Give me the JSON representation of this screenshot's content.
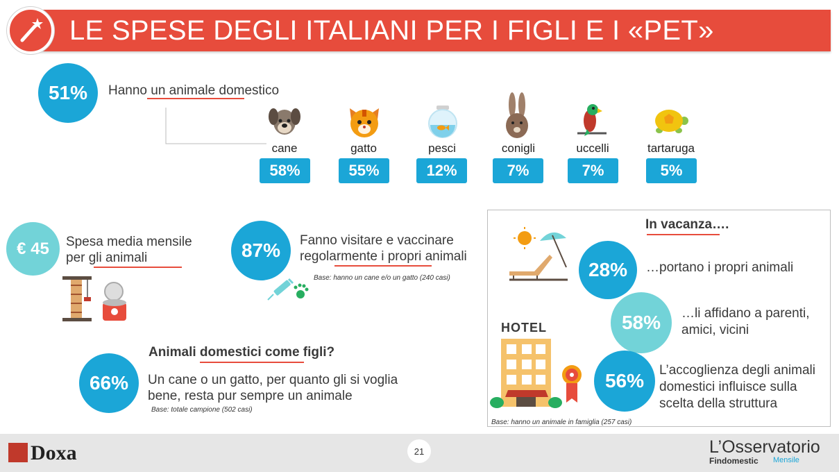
{
  "header": {
    "title": "LE SPESE DEGLI ITALIANI PER I FIGLI E I «PET»",
    "icon": "magic-wand-icon"
  },
  "pets": {
    "percent": "51%",
    "label": "Hanno un animale domestico",
    "items": [
      {
        "name": "cane",
        "value": "58%",
        "icon": "dog-icon"
      },
      {
        "name": "gatto",
        "value": "55%",
        "icon": "cat-icon"
      },
      {
        "name": "pesci",
        "value": "12%",
        "icon": "fishbowl-icon"
      },
      {
        "name": "conigli",
        "value": "7%",
        "icon": "rabbit-icon"
      },
      {
        "name": "uccelli",
        "value": "7%",
        "icon": "parrot-icon"
      },
      {
        "name": "tartaruga",
        "value": "5%",
        "icon": "turtle-icon"
      }
    ]
  },
  "spending": {
    "value": "€ 45",
    "line1": "Spesa media mensile",
    "line2": "per gli animali"
  },
  "vet": {
    "percent": "87%",
    "line1": "Fanno visitare e vaccinare",
    "line2": "regolarmente i propri animali",
    "base": "Base: hanno un cane e/o un gatto (240 casi)"
  },
  "children": {
    "title": "Animali domestici come figli?",
    "percent": "66%",
    "line1": "Un cane o un gatto, per quanto gli si voglia",
    "line2": "bene, resta pur sempre un animale",
    "base": "Base: totale campione (502 casi)"
  },
  "vacation": {
    "title": "In vacanza….",
    "items": [
      {
        "percent": "28%",
        "line1": "…portano i propri animali",
        "line2": "",
        "line3": ""
      },
      {
        "percent": "58%",
        "line1": "…li affidano a parenti,",
        "line2": "amici, vicini",
        "line3": ""
      },
      {
        "percent": "56%",
        "line1": "L’accoglienza degli animali",
        "line2": "domestici influisce sulla",
        "line3": "scelta della struttura"
      }
    ],
    "hotel_sign": "HOTEL",
    "base": "Base: hanno un animale in famiglia (257 casi)"
  },
  "footer": {
    "page": "21",
    "left_logo": "Doxa",
    "right_logo_main": "L’Osservatorio",
    "right_logo_sub": "Findomestic",
    "right_logo_tag": "Mensile"
  },
  "colors": {
    "red": "#e74c3c",
    "blue": "#1ba6d7",
    "teal": "#72d3d8"
  }
}
